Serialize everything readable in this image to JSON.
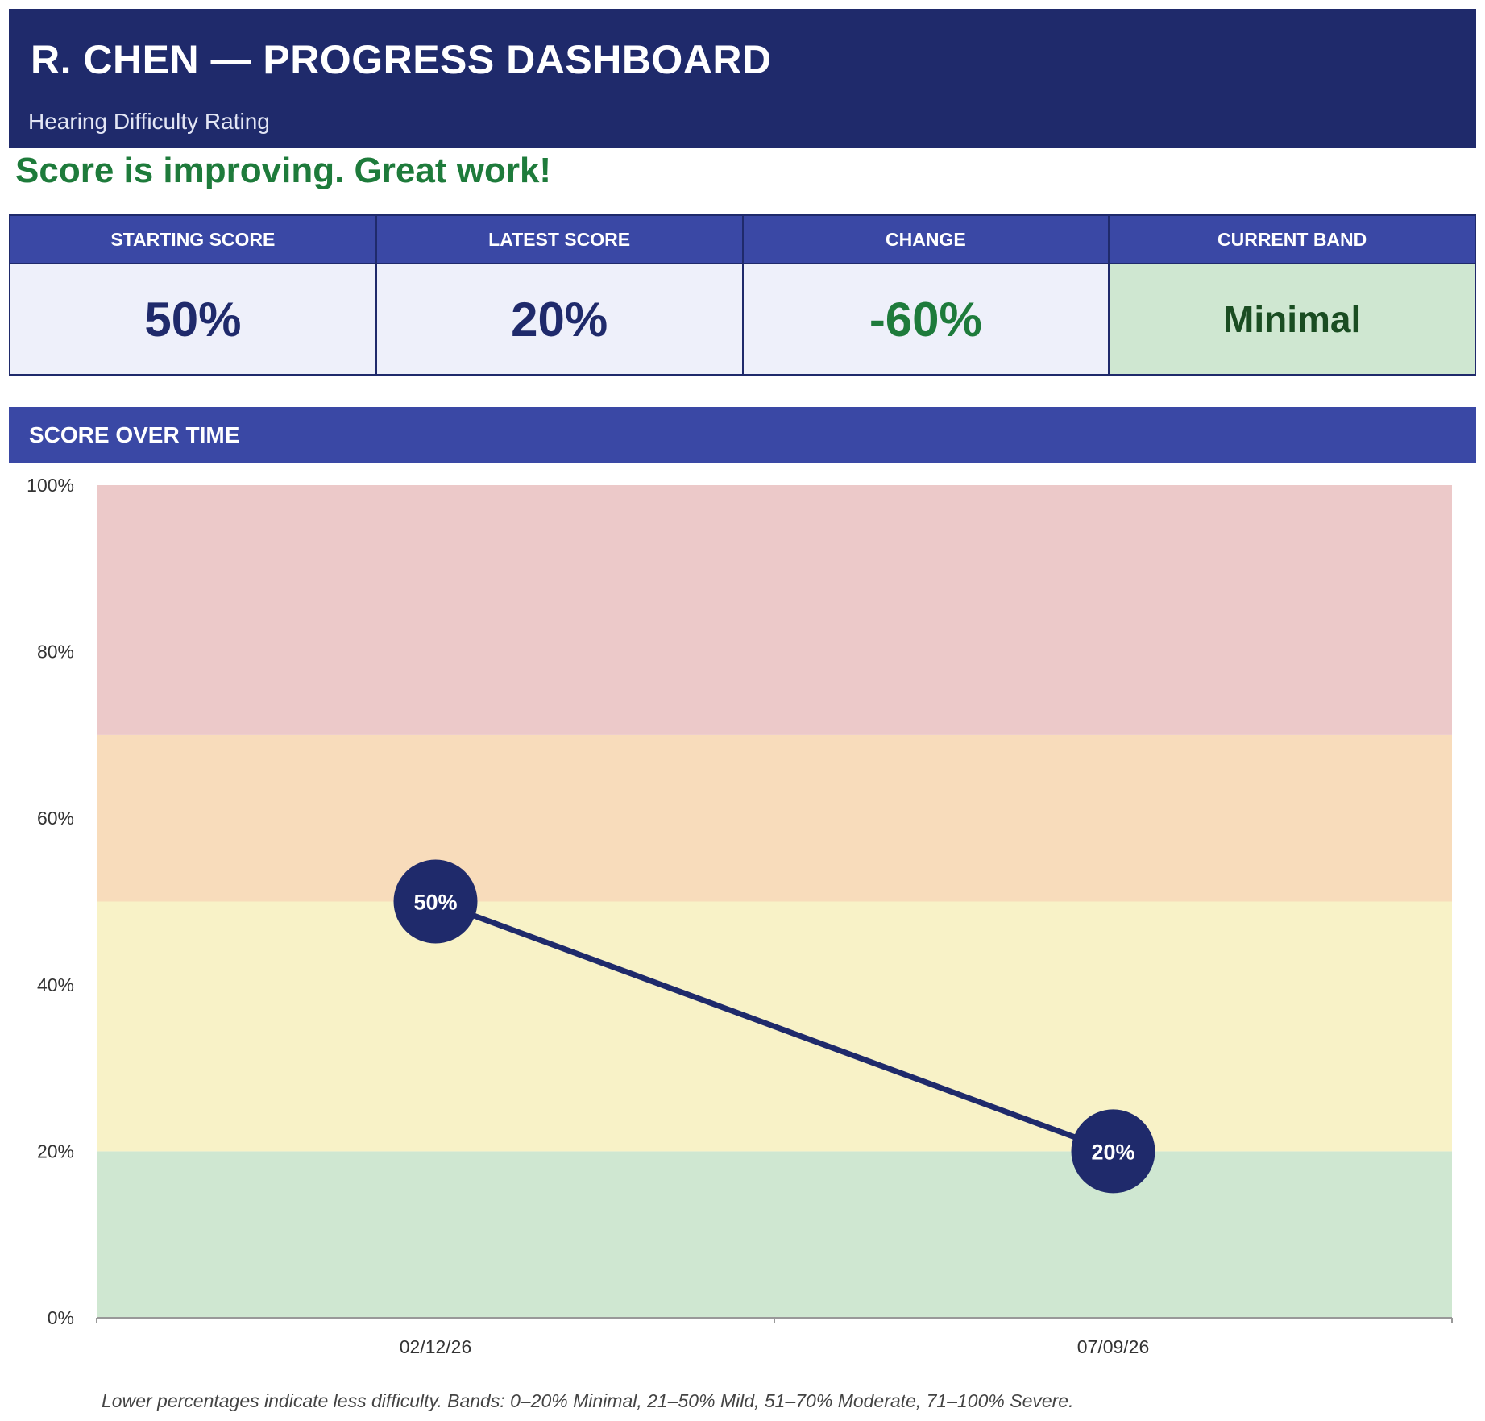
{
  "header": {
    "title": "R. CHEN — PROGRESS DASHBOARD",
    "subtitle": "Hearing Difficulty Rating"
  },
  "status_message": "Score is improving. Great work!",
  "summary": [
    {
      "label": "STARTING SCORE",
      "value": "50%"
    },
    {
      "label": "LATEST SCORE",
      "value": "20%"
    },
    {
      "label": "CHANGE",
      "value": "-60%"
    },
    {
      "label": "CURRENT BAND",
      "value": "Minimal"
    }
  ],
  "section_title": "SCORE OVER TIME",
  "chart_data": {
    "type": "line",
    "title": "",
    "xlabel": "",
    "ylabel": "",
    "ylim": [
      0,
      100
    ],
    "y_ticks": [
      0,
      20,
      40,
      60,
      80,
      100
    ],
    "y_tick_labels": [
      "0%",
      "20%",
      "40%",
      "60%",
      "80%",
      "100%"
    ],
    "x": [
      "02/12/26",
      "07/09/26"
    ],
    "series": [
      {
        "values": [
          50,
          20
        ],
        "point_labels": [
          "50%",
          "20%"
        ],
        "color": "#1f2a6b"
      }
    ],
    "bands": [
      {
        "from": 0,
        "to": 20,
        "color": "#cfe7d1"
      },
      {
        "from": 20,
        "to": 50,
        "color": "#f8f2c7"
      },
      {
        "from": 50,
        "to": 70,
        "color": "#f8dcbb"
      },
      {
        "from": 70,
        "to": 100,
        "color": "#ecc9c9"
      }
    ],
    "grid": false
  },
  "footnote": "Lower percentages indicate less difficulty. Bands: 0–20% Minimal, 21–50% Mild, 51–70% Moderate, 71–100% Severe."
}
